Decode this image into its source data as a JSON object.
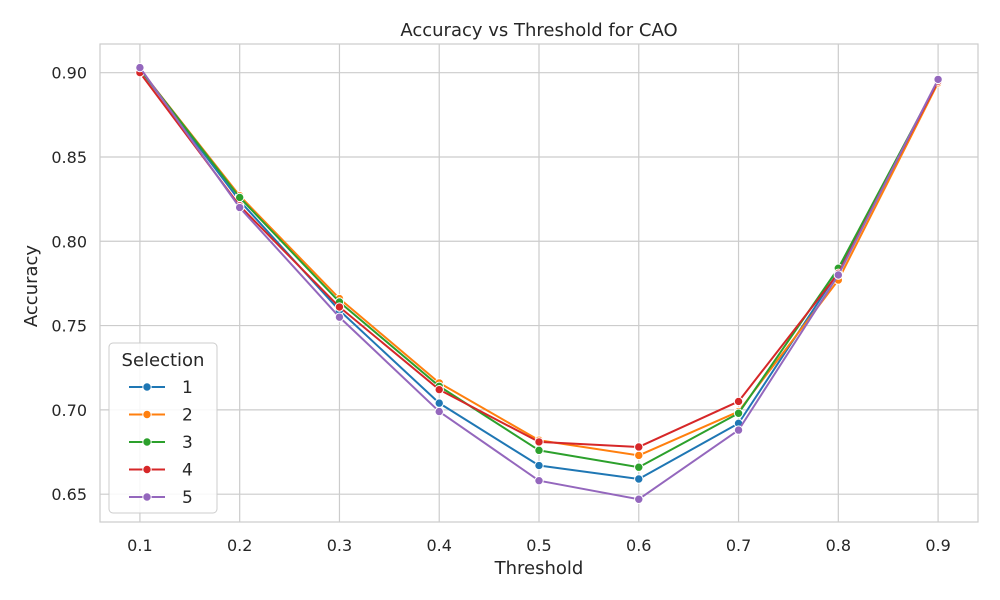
{
  "chart_data": {
    "type": "line",
    "title": "Accuracy vs Threshold for CAO",
    "xlabel": "Threshold",
    "ylabel": "Accuracy",
    "x": [
      0.1,
      0.2,
      0.3,
      0.4,
      0.5,
      0.6,
      0.7,
      0.8,
      0.9
    ],
    "x_ticks": [
      "0.1",
      "0.2",
      "0.3",
      "0.4",
      "0.5",
      "0.6",
      "0.7",
      "0.8",
      "0.9"
    ],
    "y_ticks": [
      "0.65",
      "0.70",
      "0.75",
      "0.80",
      "0.85",
      "0.90"
    ],
    "y_tick_values": [
      0.65,
      0.7,
      0.75,
      0.8,
      0.85,
      0.9
    ],
    "xlim": [
      0.06,
      0.94
    ],
    "ylim": [
      0.6335,
      0.917
    ],
    "grid": true,
    "legend": {
      "title": "Selection",
      "placement": "lower-left"
    },
    "series": [
      {
        "name": "1",
        "color": "#1f77b4",
        "values": [
          0.902,
          0.824,
          0.759,
          0.704,
          0.667,
          0.659,
          0.692,
          0.782,
          0.895
        ]
      },
      {
        "name": "2",
        "color": "#ff7f0e",
        "values": [
          0.902,
          0.827,
          0.766,
          0.716,
          0.682,
          0.673,
          0.699,
          0.777,
          0.894
        ]
      },
      {
        "name": "3",
        "color": "#2ca02c",
        "values": [
          0.902,
          0.826,
          0.764,
          0.714,
          0.676,
          0.666,
          0.698,
          0.784,
          0.895
        ]
      },
      {
        "name": "4",
        "color": "#d62728",
        "values": [
          0.9,
          0.821,
          0.761,
          0.712,
          0.681,
          0.678,
          0.705,
          0.781,
          0.895
        ]
      },
      {
        "name": "5",
        "color": "#9467bd",
        "values": [
          0.903,
          0.82,
          0.755,
          0.699,
          0.658,
          0.647,
          0.688,
          0.78,
          0.896
        ]
      }
    ]
  }
}
